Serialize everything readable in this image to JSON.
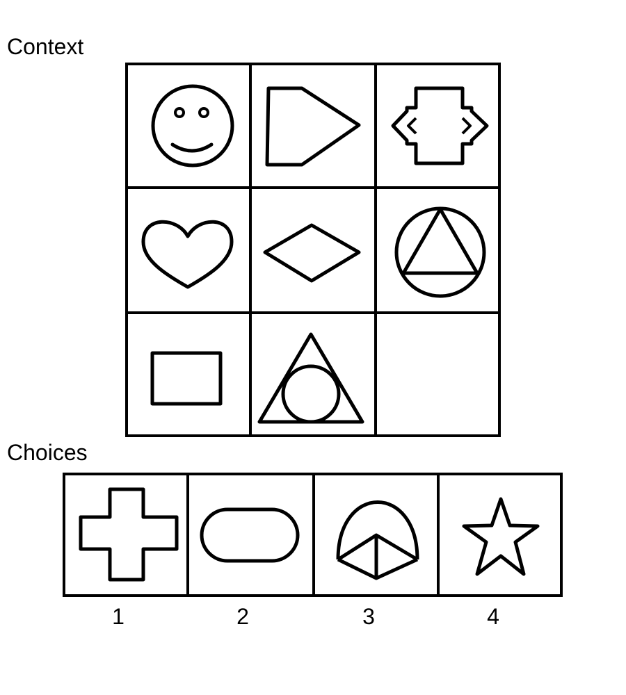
{
  "context_label": "Context",
  "choices_label": "Choices",
  "context_grid": {
    "rows": 3,
    "cols": 3,
    "cells": [
      {
        "shape": "smiley-face-icon"
      },
      {
        "shape": "pentagon-arrow-icon"
      },
      {
        "shape": "double-arrow-block-icon"
      },
      {
        "shape": "heart-icon"
      },
      {
        "shape": "diamond-icon"
      },
      {
        "shape": "triangle-in-circle-icon"
      },
      {
        "shape": "rectangle-icon"
      },
      {
        "shape": "circle-in-triangle-icon"
      },
      {
        "shape": "empty"
      }
    ]
  },
  "choices": [
    {
      "label": "1",
      "shape": "cross-icon"
    },
    {
      "label": "2",
      "shape": "rounded-rectangle-icon"
    },
    {
      "label": "3",
      "shape": "divided-arch-icon"
    },
    {
      "label": "4",
      "shape": "star-icon"
    }
  ],
  "colors": {
    "stroke": "#000000",
    "background": "#ffffff"
  }
}
